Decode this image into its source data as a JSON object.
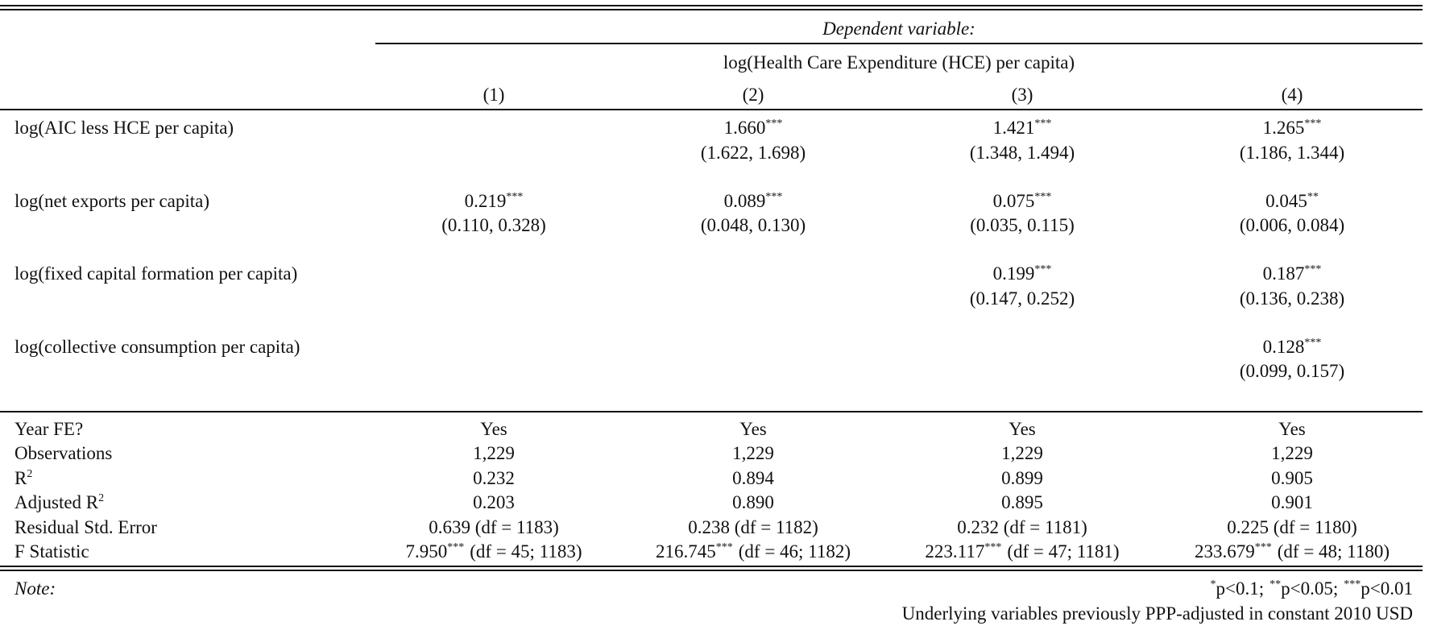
{
  "header": {
    "dependent_label": "Dependent variable:",
    "dependent_name": "log(Health Care Expenditure (HCE) per capita)",
    "columns": [
      "(1)",
      "(2)",
      "(3)",
      "(4)"
    ]
  },
  "coefficients": [
    {
      "label": "log(AIC less HCE per capita)",
      "cells": [
        null,
        {
          "est": "1.660",
          "stars": "***",
          "ci": "(1.622, 1.698)"
        },
        {
          "est": "1.421",
          "stars": "***",
          "ci": "(1.348, 1.494)"
        },
        {
          "est": "1.265",
          "stars": "***",
          "ci": "(1.186, 1.344)"
        }
      ]
    },
    {
      "label": "log(net exports per capita)",
      "cells": [
        {
          "est": "0.219",
          "stars": "***",
          "ci": "(0.110, 0.328)"
        },
        {
          "est": "0.089",
          "stars": "***",
          "ci": "(0.048, 0.130)"
        },
        {
          "est": "0.075",
          "stars": "***",
          "ci": "(0.035, 0.115)"
        },
        {
          "est": "0.045",
          "stars": "**",
          "ci": "(0.006, 0.084)"
        }
      ]
    },
    {
      "label": "log(fixed capital formation per capita)",
      "cells": [
        null,
        null,
        {
          "est": "0.199",
          "stars": "***",
          "ci": "(0.147, 0.252)"
        },
        {
          "est": "0.187",
          "stars": "***",
          "ci": "(0.136, 0.238)"
        }
      ]
    },
    {
      "label": "log(collective consumption per capita)",
      "cells": [
        null,
        null,
        null,
        {
          "est": "0.128",
          "stars": "***",
          "ci": "(0.099, 0.157)"
        }
      ]
    }
  ],
  "stats": [
    {
      "label": "Year FE?",
      "cells": [
        "Yes",
        "Yes",
        "Yes",
        "Yes"
      ]
    },
    {
      "label": "Observations",
      "cells": [
        "1,229",
        "1,229",
        "1,229",
        "1,229"
      ]
    },
    {
      "label": "R",
      "label_sup": "2",
      "cells": [
        "0.232",
        "0.894",
        "0.899",
        "0.905"
      ]
    },
    {
      "label": "Adjusted R",
      "label_sup": "2",
      "cells": [
        "0.203",
        "0.890",
        "0.895",
        "0.901"
      ]
    },
    {
      "label": "Residual Std. Error",
      "cells": [
        "0.639 (df = 1183)",
        "0.238 (df = 1182)",
        "0.232 (df = 1181)",
        "0.225 (df = 1180)"
      ]
    },
    {
      "label": "F Statistic",
      "cells": [
        {
          "est": "7.950",
          "stars": "***",
          "df": "(df = 45; 1183)"
        },
        {
          "est": "216.745",
          "stars": "***",
          "df": "(df = 46; 1182)"
        },
        {
          "est": "223.117",
          "stars": "***",
          "df": "(df = 47; 1181)"
        },
        {
          "est": "233.679",
          "stars": "***",
          "df": "(df = 48; 1180)"
        }
      ]
    }
  ],
  "note": {
    "label": "Note:",
    "significance": [
      {
        "sup": "*",
        "text": "p<0.1;"
      },
      {
        "sup": "**",
        "text": "p<0.05;"
      },
      {
        "sup": "***",
        "text": "p<0.01"
      }
    ],
    "text": "Underlying variables previously PPP-adjusted in constant 2010 USD"
  }
}
